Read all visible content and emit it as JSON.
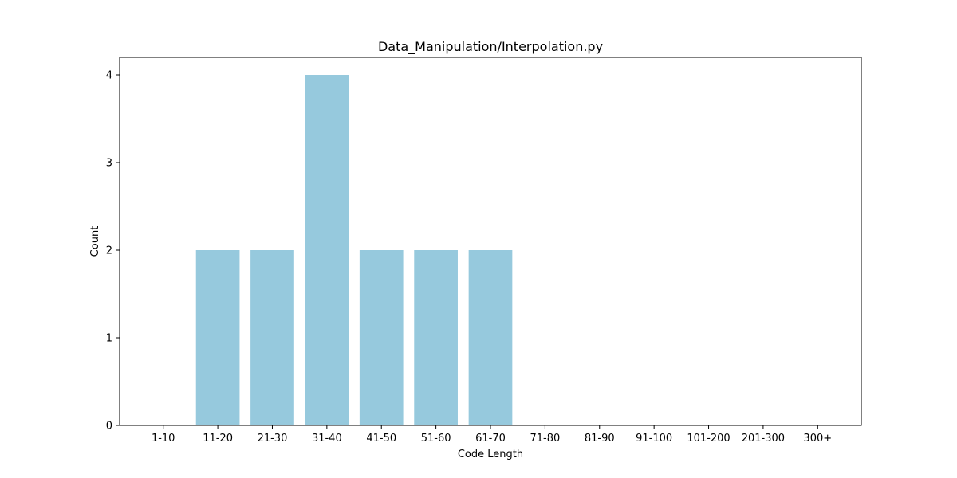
{
  "chart_data": {
    "type": "bar",
    "title": "Data_Manipulation/Interpolation.py",
    "xlabel": "Code Length",
    "ylabel": "Count",
    "categories": [
      "1-10",
      "11-20",
      "21-30",
      "31-40",
      "41-50",
      "51-60",
      "61-70",
      "71-80",
      "81-90",
      "91-100",
      "101-200",
      "201-300",
      "300+"
    ],
    "values": [
      0,
      2,
      2,
      4,
      2,
      2,
      2,
      0,
      0,
      0,
      0,
      0,
      0
    ],
    "ylim": [
      0,
      4.2
    ],
    "yticks": [
      0,
      1,
      2,
      3,
      4
    ],
    "grid": false,
    "bar_color": "#96c9dd"
  }
}
